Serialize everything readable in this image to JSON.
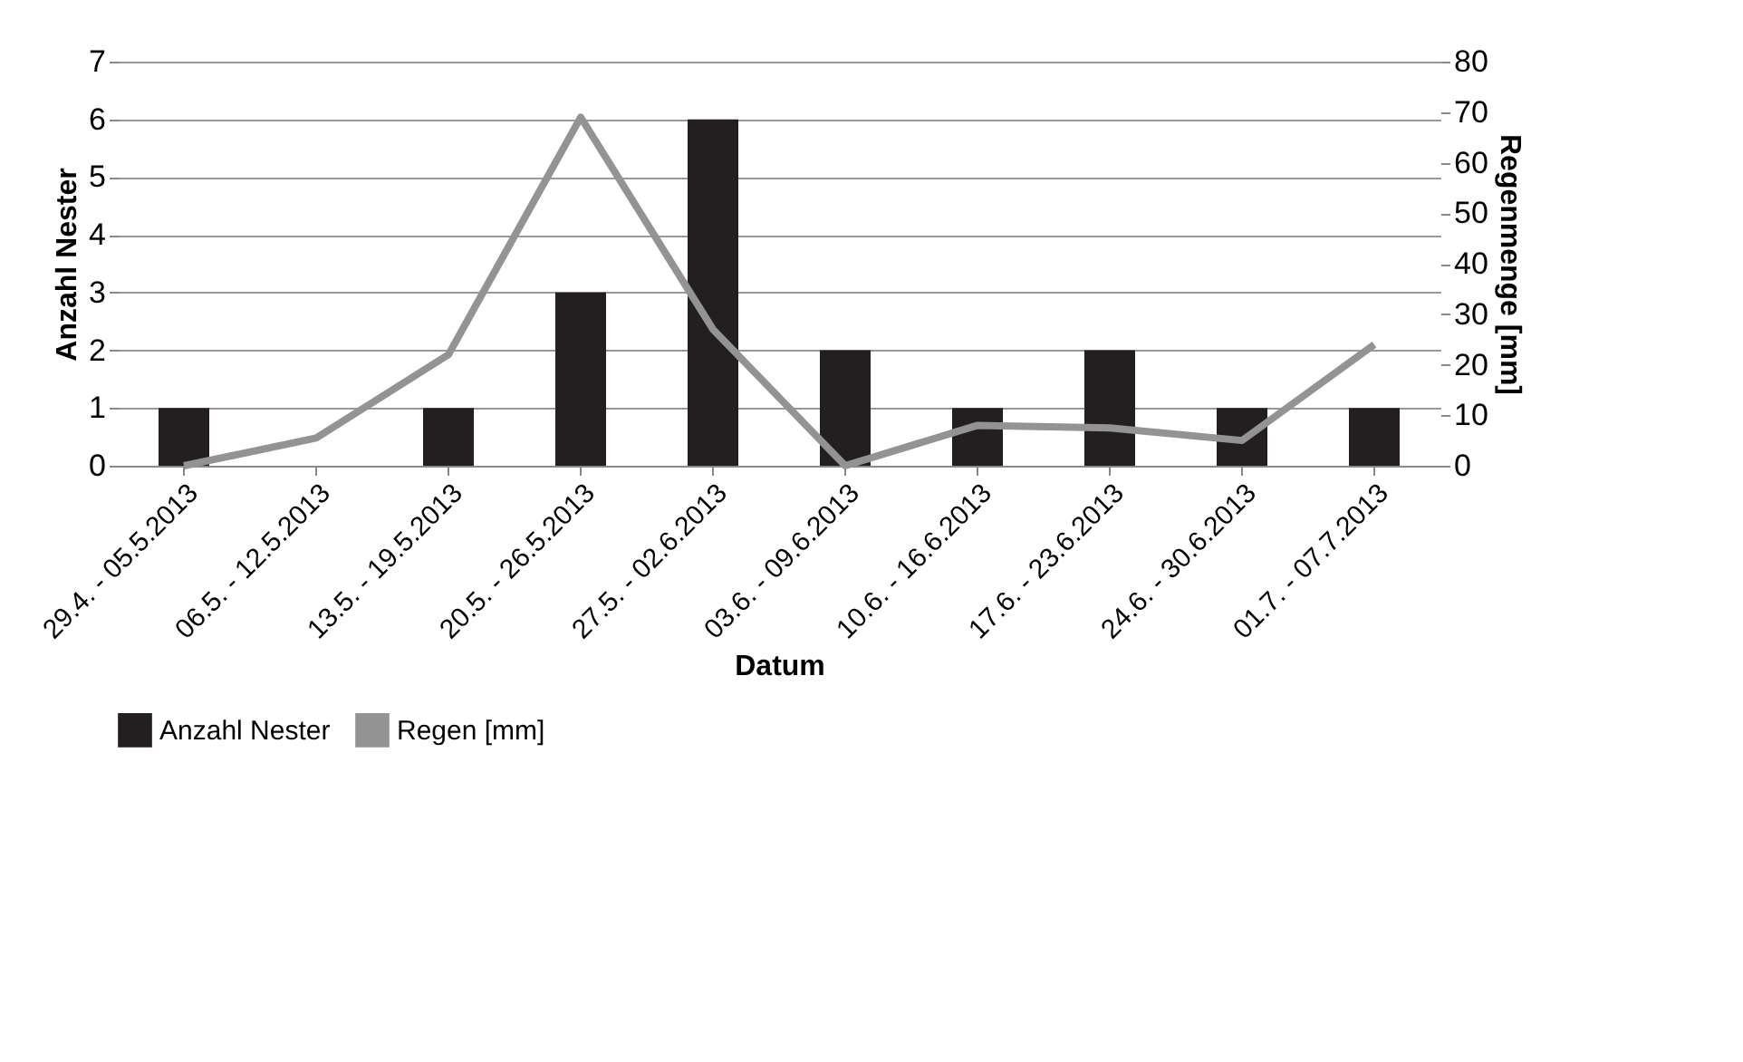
{
  "chart_data": {
    "type": "bar",
    "xlabel": "Datum",
    "ylabel": "Anzahl Nester",
    "y2label": "Regenmenge [mm]",
    "categories": [
      "29.4. - 05.5.2013",
      "06.5. - 12.5.2013",
      "13.5. - 19.5.2013",
      "20.5. - 26.5.2013",
      "27.5. - 02.6.2013",
      "03.6. - 09.6.2013",
      "10.6. - 16.6.2013",
      "17.6. - 23.6.2013",
      "24.6. - 30.6.2013",
      "01.7. - 07.7.2013"
    ],
    "series": [
      {
        "name": "Anzahl Nester",
        "color": "#231f20",
        "values": [
          1,
          0,
          1,
          3,
          6,
          2,
          1,
          2,
          1,
          1
        ]
      },
      {
        "name": "Regen  [mm]",
        "color": "#939393",
        "type": "line",
        "axis": "y2",
        "values": [
          0,
          5.5,
          22,
          69,
          27,
          0,
          8,
          7.5,
          5,
          24
        ]
      }
    ],
    "ylim": [
      0,
      7
    ],
    "yticks": [
      0,
      1,
      2,
      3,
      4,
      5,
      6,
      7
    ],
    "y2lim": [
      0,
      80
    ],
    "y2ticks": [
      0,
      10,
      20,
      30,
      40,
      50,
      60,
      70,
      80
    ],
    "grid": "y",
    "legend": "bottom"
  }
}
